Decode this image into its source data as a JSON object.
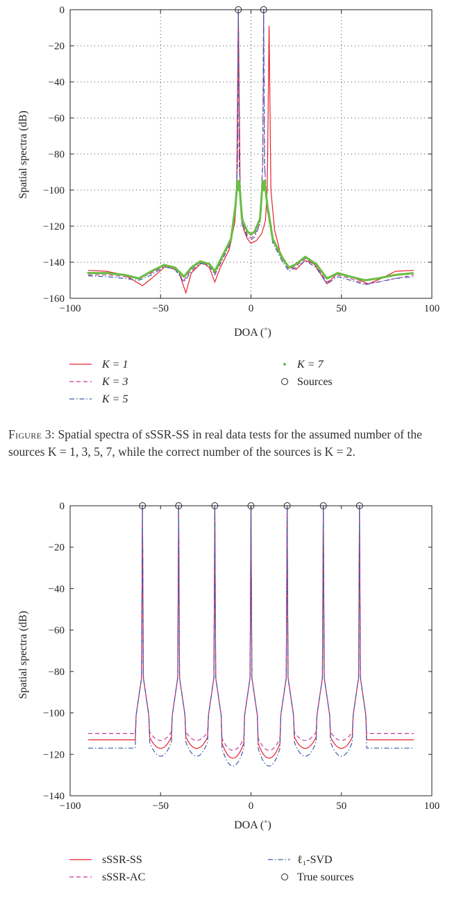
{
  "caption": {
    "label": "Figure 3:",
    "text": "Spatial spectra of sSSR-SS in real data tests for the assumed number of the sources K = 1, 3, 5, 7, while the correct number of the sources is K = 2."
  },
  "chart_data": [
    {
      "type": "line",
      "xlabel": "DOA (˚)",
      "ylabel": "Spatial spectra (dB)",
      "xlim": [
        -100,
        100
      ],
      "ylim": [
        -160,
        0
      ],
      "xticks": [
        "−100",
        "−50",
        "0",
        "50",
        "100"
      ],
      "yticks": [
        "0",
        "−20",
        "−40",
        "−60",
        "−80",
        "−100",
        "−120",
        "−140",
        "−160"
      ],
      "grid": true,
      "legend_position": "below",
      "sources": [
        -7,
        7
      ],
      "series": [
        {
          "name": "K = 1",
          "color": "#e8202a",
          "style": "solid",
          "points": [
            [
              -90,
              -144.5
            ],
            [
              -80,
              -145
            ],
            [
              -70,
              -147
            ],
            [
              -60,
              -153
            ],
            [
              -55,
              -149
            ],
            [
              -47,
              -142
            ],
            [
              -40,
              -145
            ],
            [
              -36,
              -157
            ],
            [
              -33,
              -146
            ],
            [
              -27,
              -140
            ],
            [
              -23,
              -143
            ],
            [
              -20,
              -151
            ],
            [
              -17,
              -143
            ],
            [
              -12,
              -133
            ],
            [
              -9,
              -118
            ],
            [
              -8,
              -105
            ],
            [
              -7,
              0
            ],
            [
              -6,
              -100
            ],
            [
              -4,
              -122
            ],
            [
              -2,
              -127
            ],
            [
              0,
              -129.5
            ],
            [
              3,
              -128
            ],
            [
              6,
              -124
            ],
            [
              8,
              -117
            ],
            [
              9,
              -100
            ],
            [
              10,
              -9
            ],
            [
              11,
              -100
            ],
            [
              13,
              -122
            ],
            [
              16,
              -134
            ],
            [
              20,
              -142
            ],
            [
              25,
              -144
            ],
            [
              30,
              -139
            ],
            [
              35,
              -141
            ],
            [
              42,
              -152
            ],
            [
              48,
              -146
            ],
            [
              55,
              -148
            ],
            [
              60,
              -150
            ],
            [
              65,
              -152
            ],
            [
              72,
              -149
            ],
            [
              80,
              -145
            ],
            [
              90,
              -144.5
            ]
          ]
        },
        {
          "name": "K = 3",
          "color": "#c2389a",
          "style": "dashed",
          "points": [
            [
              -90,
              -147
            ],
            [
              -80,
              -147
            ],
            [
              -70,
              -148
            ],
            [
              -62,
              -149
            ],
            [
              -55,
              -146
            ],
            [
              -48,
              -142
            ],
            [
              -42,
              -144
            ],
            [
              -37,
              -150
            ],
            [
              -33,
              -144
            ],
            [
              -28,
              -140
            ],
            [
              -23,
              -142
            ],
            [
              -20,
              -146
            ],
            [
              -16,
              -138
            ],
            [
              -11,
              -128
            ],
            [
              -8.5,
              -110
            ],
            [
              -7.5,
              -85
            ],
            [
              -7,
              0
            ],
            [
              -6.5,
              -85
            ],
            [
              -5,
              -118
            ],
            [
              -2,
              -125
            ],
            [
              0,
              -126.5
            ],
            [
              2,
              -125
            ],
            [
              5,
              -118
            ],
            [
              6.5,
              -85
            ],
            [
              7,
              0
            ],
            [
              7.5,
              -85
            ],
            [
              9,
              -110
            ],
            [
              12,
              -128
            ],
            [
              17,
              -138
            ],
            [
              21,
              -144
            ],
            [
              25,
              -142
            ],
            [
              30,
              -138
            ],
            [
              36,
              -142
            ],
            [
              42,
              -151
            ],
            [
              48,
              -147
            ],
            [
              55,
              -149
            ],
            [
              63,
              -152
            ],
            [
              70,
              -151
            ],
            [
              80,
              -149
            ],
            [
              90,
              -147
            ]
          ]
        },
        {
          "name": "K = 5",
          "color": "#3a5ca8",
          "style": "dashdot",
          "points": [
            [
              -90,
              -147.5
            ],
            [
              -80,
              -148
            ],
            [
              -70,
              -149
            ],
            [
              -62,
              -150
            ],
            [
              -55,
              -147
            ],
            [
              -48,
              -142.5
            ],
            [
              -42,
              -144
            ],
            [
              -37,
              -151
            ],
            [
              -33,
              -145
            ],
            [
              -28,
              -140.5
            ],
            [
              -23,
              -142
            ],
            [
              -20,
              -147
            ],
            [
              -16,
              -139
            ],
            [
              -11,
              -129
            ],
            [
              -8.5,
              -111
            ],
            [
              -7.5,
              -86
            ],
            [
              -7,
              0
            ],
            [
              -6.5,
              -86
            ],
            [
              -5,
              -119
            ],
            [
              -2,
              -126
            ],
            [
              0,
              -127.5
            ],
            [
              2,
              -126
            ],
            [
              5,
              -119
            ],
            [
              6.5,
              -86
            ],
            [
              7,
              0
            ],
            [
              7.5,
              -86
            ],
            [
              9,
              -111
            ],
            [
              12,
              -129
            ],
            [
              17,
              -139
            ],
            [
              21,
              -145
            ],
            [
              25,
              -143
            ],
            [
              30,
              -139
            ],
            [
              36,
              -143
            ],
            [
              42,
              -152
            ],
            [
              48,
              -148
            ],
            [
              55,
              -150
            ],
            [
              63,
              -152.5
            ],
            [
              70,
              -151
            ],
            [
              80,
              -149
            ],
            [
              90,
              -148
            ]
          ]
        },
        {
          "name": "K = 7",
          "color": "#6bbd45",
          "style": "dots",
          "points": [
            [
              -90,
              -146
            ],
            [
              -80,
              -146
            ],
            [
              -70,
              -147
            ],
            [
              -62,
              -149
            ],
            [
              -55,
              -145
            ],
            [
              -48,
              -141.5
            ],
            [
              -42,
              -143
            ],
            [
              -37,
              -148
            ],
            [
              -33,
              -143
            ],
            [
              -28,
              -139.5
            ],
            [
              -23,
              -141
            ],
            [
              -20,
              -145
            ],
            [
              -16,
              -137
            ],
            [
              -11,
              -127
            ],
            [
              -8.5,
              -108
            ],
            [
              -7.5,
              -95
            ],
            [
              -7,
              -100
            ],
            [
              -6.5,
              -95
            ],
            [
              -5,
              -116
            ],
            [
              -2,
              -123
            ],
            [
              0,
              -124.5
            ],
            [
              2,
              -123
            ],
            [
              5,
              -116
            ],
            [
              6.5,
              -95
            ],
            [
              7,
              -100
            ],
            [
              7.5,
              -95
            ],
            [
              9,
              -108
            ],
            [
              12,
              -127
            ],
            [
              17,
              -137
            ],
            [
              21,
              -143
            ],
            [
              25,
              -141
            ],
            [
              30,
              -137
            ],
            [
              36,
              -141
            ],
            [
              42,
              -149
            ],
            [
              48,
              -146
            ],
            [
              55,
              -148
            ],
            [
              63,
              -150
            ],
            [
              70,
              -149
            ],
            [
              80,
              -147
            ],
            [
              90,
              -146
            ]
          ]
        }
      ],
      "legend": [
        "K = 1",
        "K = 3",
        "K = 5",
        "K = 7",
        "Sources"
      ]
    },
    {
      "type": "line",
      "xlabel": "DOA (˚)",
      "ylabel": "Spatial spectra (dB)",
      "xlim": [
        -100,
        100
      ],
      "ylim": [
        -140,
        0
      ],
      "xticks": [
        "−100",
        "−50",
        "0",
        "50",
        "100"
      ],
      "yticks": [
        "0",
        "−20",
        "−40",
        "−60",
        "−80",
        "−100",
        "−120",
        "−140"
      ],
      "grid": false,
      "legend_position": "below",
      "sources": [
        -60,
        -40,
        -20,
        0,
        20,
        40,
        60
      ],
      "series": [
        {
          "name": "sSSR-SS",
          "color": "#e8202a",
          "style": "solid",
          "base_edge": -113,
          "base_mid": -118,
          "base_center": -123
        },
        {
          "name": "sSSR-AC",
          "color": "#c2389a",
          "style": "dashed",
          "base_edge": -110,
          "base_mid": -114,
          "base_center": -119
        },
        {
          "name": "ℓ₁-SVD",
          "color": "#3a5ca8",
          "style": "dashdot",
          "base_edge": -117,
          "base_mid": -122,
          "base_center": -127
        }
      ],
      "legend": [
        "sSSR-SS",
        "sSSR-AC",
        "ℓ₁-SVD",
        "True sources"
      ]
    }
  ]
}
